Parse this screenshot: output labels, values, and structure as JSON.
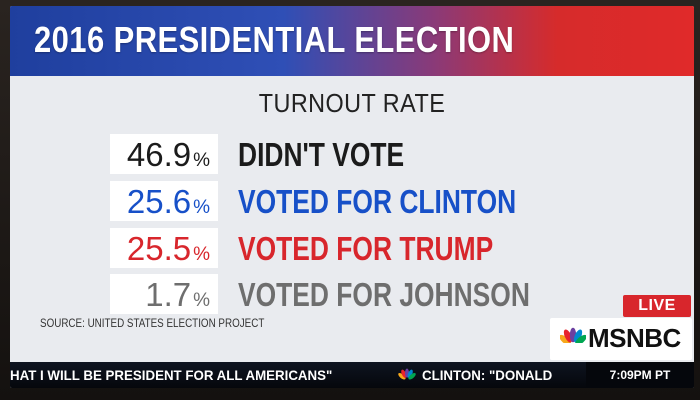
{
  "title": "2016 PRESIDENTIAL ELECTION",
  "subtitle": "TURNOUT RATE",
  "rows": [
    {
      "value": "46.9",
      "unit": "%",
      "label": "DIDN'T VOTE",
      "color": "#1b1b1b"
    },
    {
      "value": "25.6",
      "unit": "%",
      "label": "VOTED FOR CLINTON",
      "color": "#1750c8"
    },
    {
      "value": "25.5",
      "unit": "%",
      "label": "VOTED FOR TRUMP",
      "color": "#d8262c"
    },
    {
      "value": "1.7",
      "unit": "%",
      "label": "VOTED FOR JOHNSON",
      "color": "#6e6e6e"
    }
  ],
  "source": "SOURCE: UNITED STATES ELECTION PROJECT",
  "live_label": "LIVE",
  "network": "MSNBC",
  "ticker": {
    "headline": "HAT I WILL BE PRESIDENT FOR ALL AMERICANS\"",
    "headline_2": "CLINTON: \"DONALD",
    "time": "7:09PM PT"
  },
  "colors": {
    "title_blue": "#1f3f9e",
    "title_red": "#e02a2a",
    "live_red": "#d8262c"
  },
  "icons": [
    "peacock-logo-icon"
  ]
}
